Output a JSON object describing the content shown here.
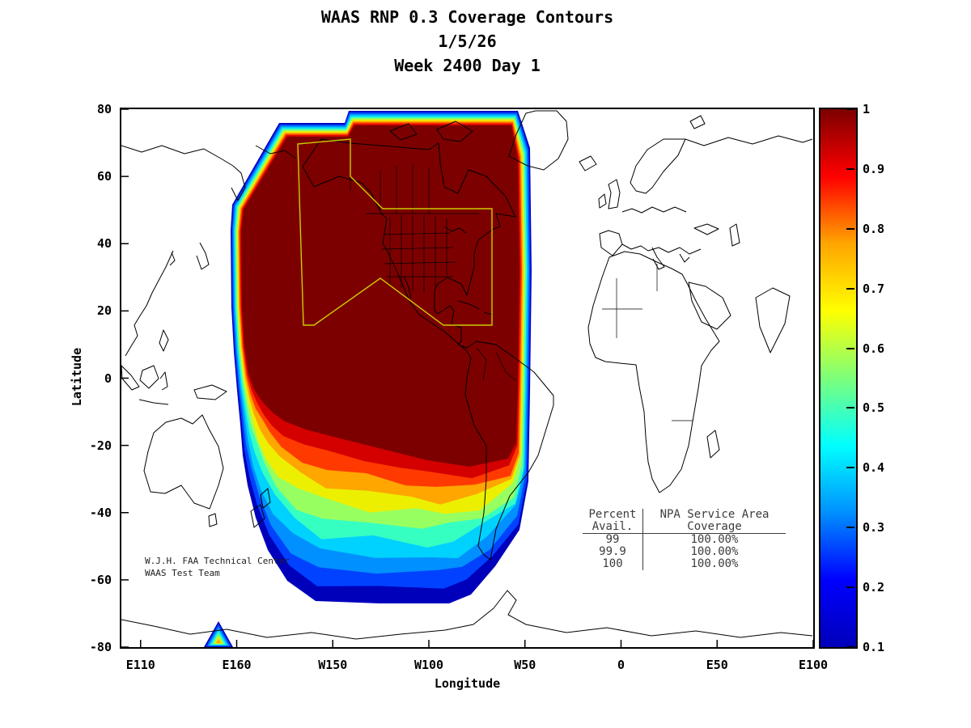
{
  "title": {
    "line1": "WAAS RNP 0.3 Coverage Contours",
    "line2": "1/5/26",
    "line3": "Week 2400 Day 1"
  },
  "axes": {
    "xlabel": "Longitude",
    "ylabel": "Latitude",
    "x_ticks": [
      "E110",
      "E160",
      "W150",
      "W100",
      "W50",
      "0",
      "E50",
      "E100"
    ],
    "y_ticks": [
      "80",
      "60",
      "40",
      "20",
      "0",
      "-20",
      "-40",
      "-60",
      "-80"
    ]
  },
  "colorbar": {
    "ticks": [
      "1",
      "0.9",
      "0.8",
      "0.7",
      "0.6",
      "0.5",
      "0.4",
      "0.3",
      "0.2",
      "0.1"
    ]
  },
  "annotations": {
    "credit_line1": "W.J.H. FAA Technical Center",
    "credit_line2": "WAAS Test Team",
    "table": {
      "col1_header": "Percent",
      "col2_header": "NPA Service Area",
      "col1_sub": "Avail.",
      "col2_sub": "Coverage",
      "rows": [
        [
          "99",
          "100.00%"
        ],
        [
          "99.9",
          "100.00%"
        ],
        [
          "100",
          "100.00%"
        ]
      ]
    }
  },
  "colors": {
    "plot_bg": "#ffffff",
    "coastline": "#000000",
    "service_area": "#cccc00",
    "jet_levels": [
      "#0000bb",
      "#0042ff",
      "#0090ff",
      "#00d2ff",
      "#36ffc2",
      "#98ff60",
      "#ecf000",
      "#ffa600",
      "#ff3a00",
      "#d40000",
      "#7d0000"
    ]
  },
  "chart_data": {
    "type": "contour",
    "title": "WAAS RNP 0.3 Coverage Contours",
    "date": "1/5/26",
    "gps_week_day": "Week 2400 Day 1",
    "xlabel": "Longitude",
    "ylabel": "Latitude",
    "x_tick_labels": [
      "E110",
      "E160",
      "W150",
      "W100",
      "W50",
      "0",
      "E50",
      "E100"
    ],
    "y_tick_labels": [
      80,
      60,
      40,
      20,
      0,
      -20,
      -40,
      -60,
      -80
    ],
    "x_range": "longitude 100E eastward through 360 degrees (Pacific / Americas centered)",
    "y_range": [
      -80,
      80
    ],
    "colormap": "jet",
    "colorbar_range": [
      0.1,
      1
    ],
    "colorbar_ticks": [
      1,
      0.9,
      0.8,
      0.7,
      0.6,
      0.5,
      0.4,
      0.3,
      0.2,
      0.1
    ],
    "contour_levels": [
      0.1,
      0.2,
      0.3,
      0.4,
      0.5,
      0.6,
      0.7,
      0.8,
      0.9,
      0.95,
      1.0
    ],
    "description": "RNP 0.3 availability coverage: availability near 1.0 (dark red) over Alaska, Canada, CONUS, Mexico, Caribbean and northern South America; banded contours decrease southwestward across the South Pacific to 0.1 (blue) at the outer boundary near 70S; small residual contour spot near 75S 155E.",
    "service_area_outline": "Yellow NPA service-area polygon enclosing Alaska and CONUS (approx. 165W-67W, 30N-71N)",
    "coverage_table": {
      "columns": [
        "Percent Avail.",
        "NPA Service Area Coverage"
      ],
      "rows": [
        [
          "99",
          "100.00%"
        ],
        [
          "99.9",
          "100.00%"
        ],
        [
          "100",
          "100.00%"
        ]
      ]
    }
  }
}
